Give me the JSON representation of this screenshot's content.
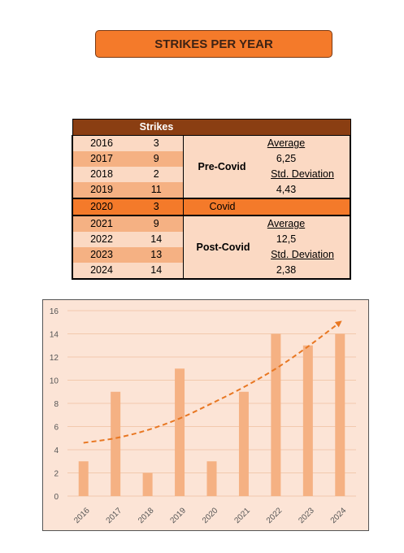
{
  "title": "STRIKES PER YEAR",
  "table": {
    "header": "Strikes",
    "rows": [
      {
        "year": "2016",
        "strikes": "3"
      },
      {
        "year": "2017",
        "strikes": "9"
      },
      {
        "year": "2018",
        "strikes": "2"
      },
      {
        "year": "2019",
        "strikes": "11"
      },
      {
        "year": "2020",
        "strikes": "3"
      },
      {
        "year": "2021",
        "strikes": "9"
      },
      {
        "year": "2022",
        "strikes": "14"
      },
      {
        "year": "2023",
        "strikes": "13"
      },
      {
        "year": "2024",
        "strikes": "14"
      }
    ],
    "pre": {
      "label": "Pre-Covid",
      "avg_label": "Average",
      "avg": "6,25",
      "sd_label": "Std. Deviation",
      "sd": "4,43"
    },
    "covid": {
      "label": "Covid"
    },
    "post": {
      "label": "Post-Covid",
      "avg_label": "Average",
      "avg": "12,5",
      "sd_label": "Std. Deviation",
      "sd": "2,38"
    }
  },
  "colors": {
    "accent": "#F47A2A",
    "header": "#8A3E12",
    "bar": "#F5B183",
    "plot_bg": "#FCE4D6",
    "trend": "#E87722"
  },
  "chart_data": {
    "type": "bar",
    "categories": [
      "2016",
      "2017",
      "2018",
      "2019",
      "2020",
      "2021",
      "2022",
      "2023",
      "2024"
    ],
    "values": [
      3,
      9,
      2,
      11,
      3,
      9,
      14,
      13,
      14
    ],
    "ylim": [
      0,
      16
    ],
    "yticks": [
      0,
      2,
      4,
      6,
      8,
      10,
      12,
      14,
      16
    ],
    "grid": true,
    "trendline": {
      "style": "dashed",
      "arrow": true,
      "values": [
        4.6,
        5.0,
        5.7,
        6.7,
        8.0,
        9.4,
        11.0,
        12.9,
        15.0
      ]
    },
    "title": "",
    "xlabel": "",
    "ylabel": ""
  }
}
